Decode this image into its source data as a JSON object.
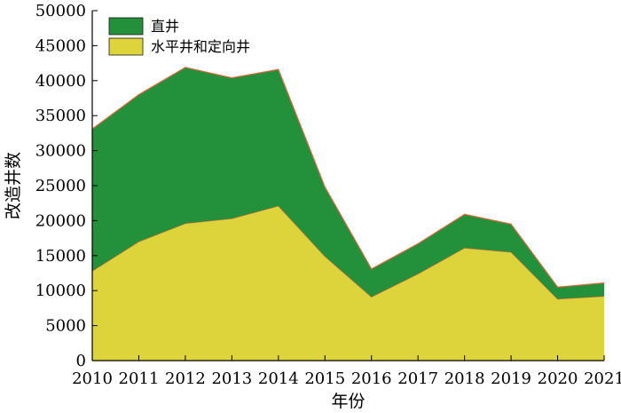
{
  "chart_data": {
    "type": "area",
    "stacked": true,
    "xlabel": "年份",
    "ylabel": "改造井数",
    "xlim": [
      2010,
      2021
    ],
    "ylim": [
      0,
      50000
    ],
    "x": [
      2010,
      2011,
      2012,
      2013,
      2014,
      2015,
      2016,
      2017,
      2018,
      2019,
      2020,
      2021
    ],
    "x_ticks": [
      "2010",
      "2011",
      "2012",
      "2013",
      "2014",
      "2015",
      "2016",
      "2017",
      "2018",
      "2019",
      "2020",
      "2021"
    ],
    "y_ticks": [
      "0",
      "5000",
      "10000",
      "15000",
      "20000",
      "25000",
      "30000",
      "35000",
      "40000",
      "45000",
      "50000"
    ],
    "series": [
      {
        "name": "水平井和定向井",
        "color": "#ddd43c",
        "values": [
          12800,
          17000,
          19600,
          20300,
          22100,
          14900,
          9100,
          12400,
          16100,
          15500,
          8800,
          9200
        ]
      },
      {
        "name": "直井",
        "color": "#23903c",
        "values": [
          20300,
          21000,
          22300,
          20100,
          19500,
          9900,
          4000,
          4300,
          4800,
          4000,
          1700,
          1900
        ]
      }
    ],
    "edge_color": "#e06a3a",
    "legend_position": "top-left",
    "legend_order": [
      "直井",
      "水平井和定向井"
    ],
    "grid": false
  }
}
